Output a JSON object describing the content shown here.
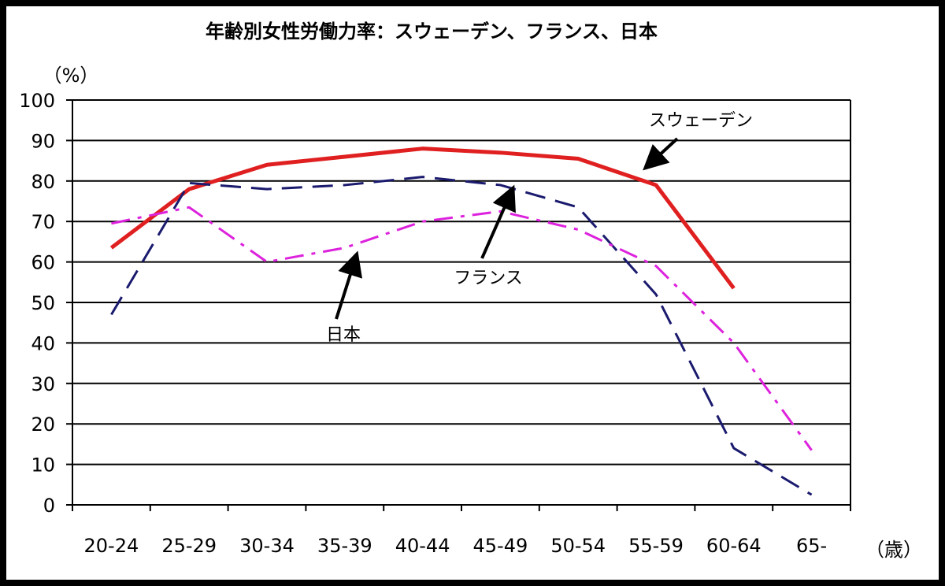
{
  "chart_data": {
    "type": "line",
    "title": "年齢別女性労働力率：スウェーデン、フランス、日本",
    "y_unit_label": "（%）",
    "x_unit_label": "（歳）",
    "ylim": [
      0,
      100
    ],
    "yticks": [
      0,
      10,
      20,
      30,
      40,
      50,
      60,
      70,
      80,
      90,
      100
    ],
    "grid": true,
    "categories": [
      "20-24",
      "25-29",
      "30-34",
      "35-39",
      "40-44",
      "45-49",
      "50-54",
      "55-59",
      "60-64",
      "65-"
    ],
    "series": [
      {
        "name": "スウェーデン",
        "color": "#e02020",
        "style": "solid",
        "values": [
          63.5,
          78,
          84,
          86,
          88,
          87,
          85.5,
          79,
          53.5,
          null
        ]
      },
      {
        "name": "フランス",
        "color": "#1a1a6e",
        "style": "dashed",
        "values": [
          47,
          79.5,
          78,
          79,
          81,
          79,
          73.5,
          52,
          14,
          2.5
        ]
      },
      {
        "name": "日本",
        "color": "#dd22dd",
        "style": "dashdot",
        "values": [
          69.5,
          73.5,
          60,
          63.5,
          70,
          72.5,
          68,
          59,
          40,
          13.5
        ]
      }
    ],
    "annotations": [
      {
        "label": "スウェーデン",
        "target_series": "スウェーデン"
      },
      {
        "label": "フランス",
        "target_series": "フランス"
      },
      {
        "label": "日本",
        "target_series": "日本"
      }
    ]
  }
}
